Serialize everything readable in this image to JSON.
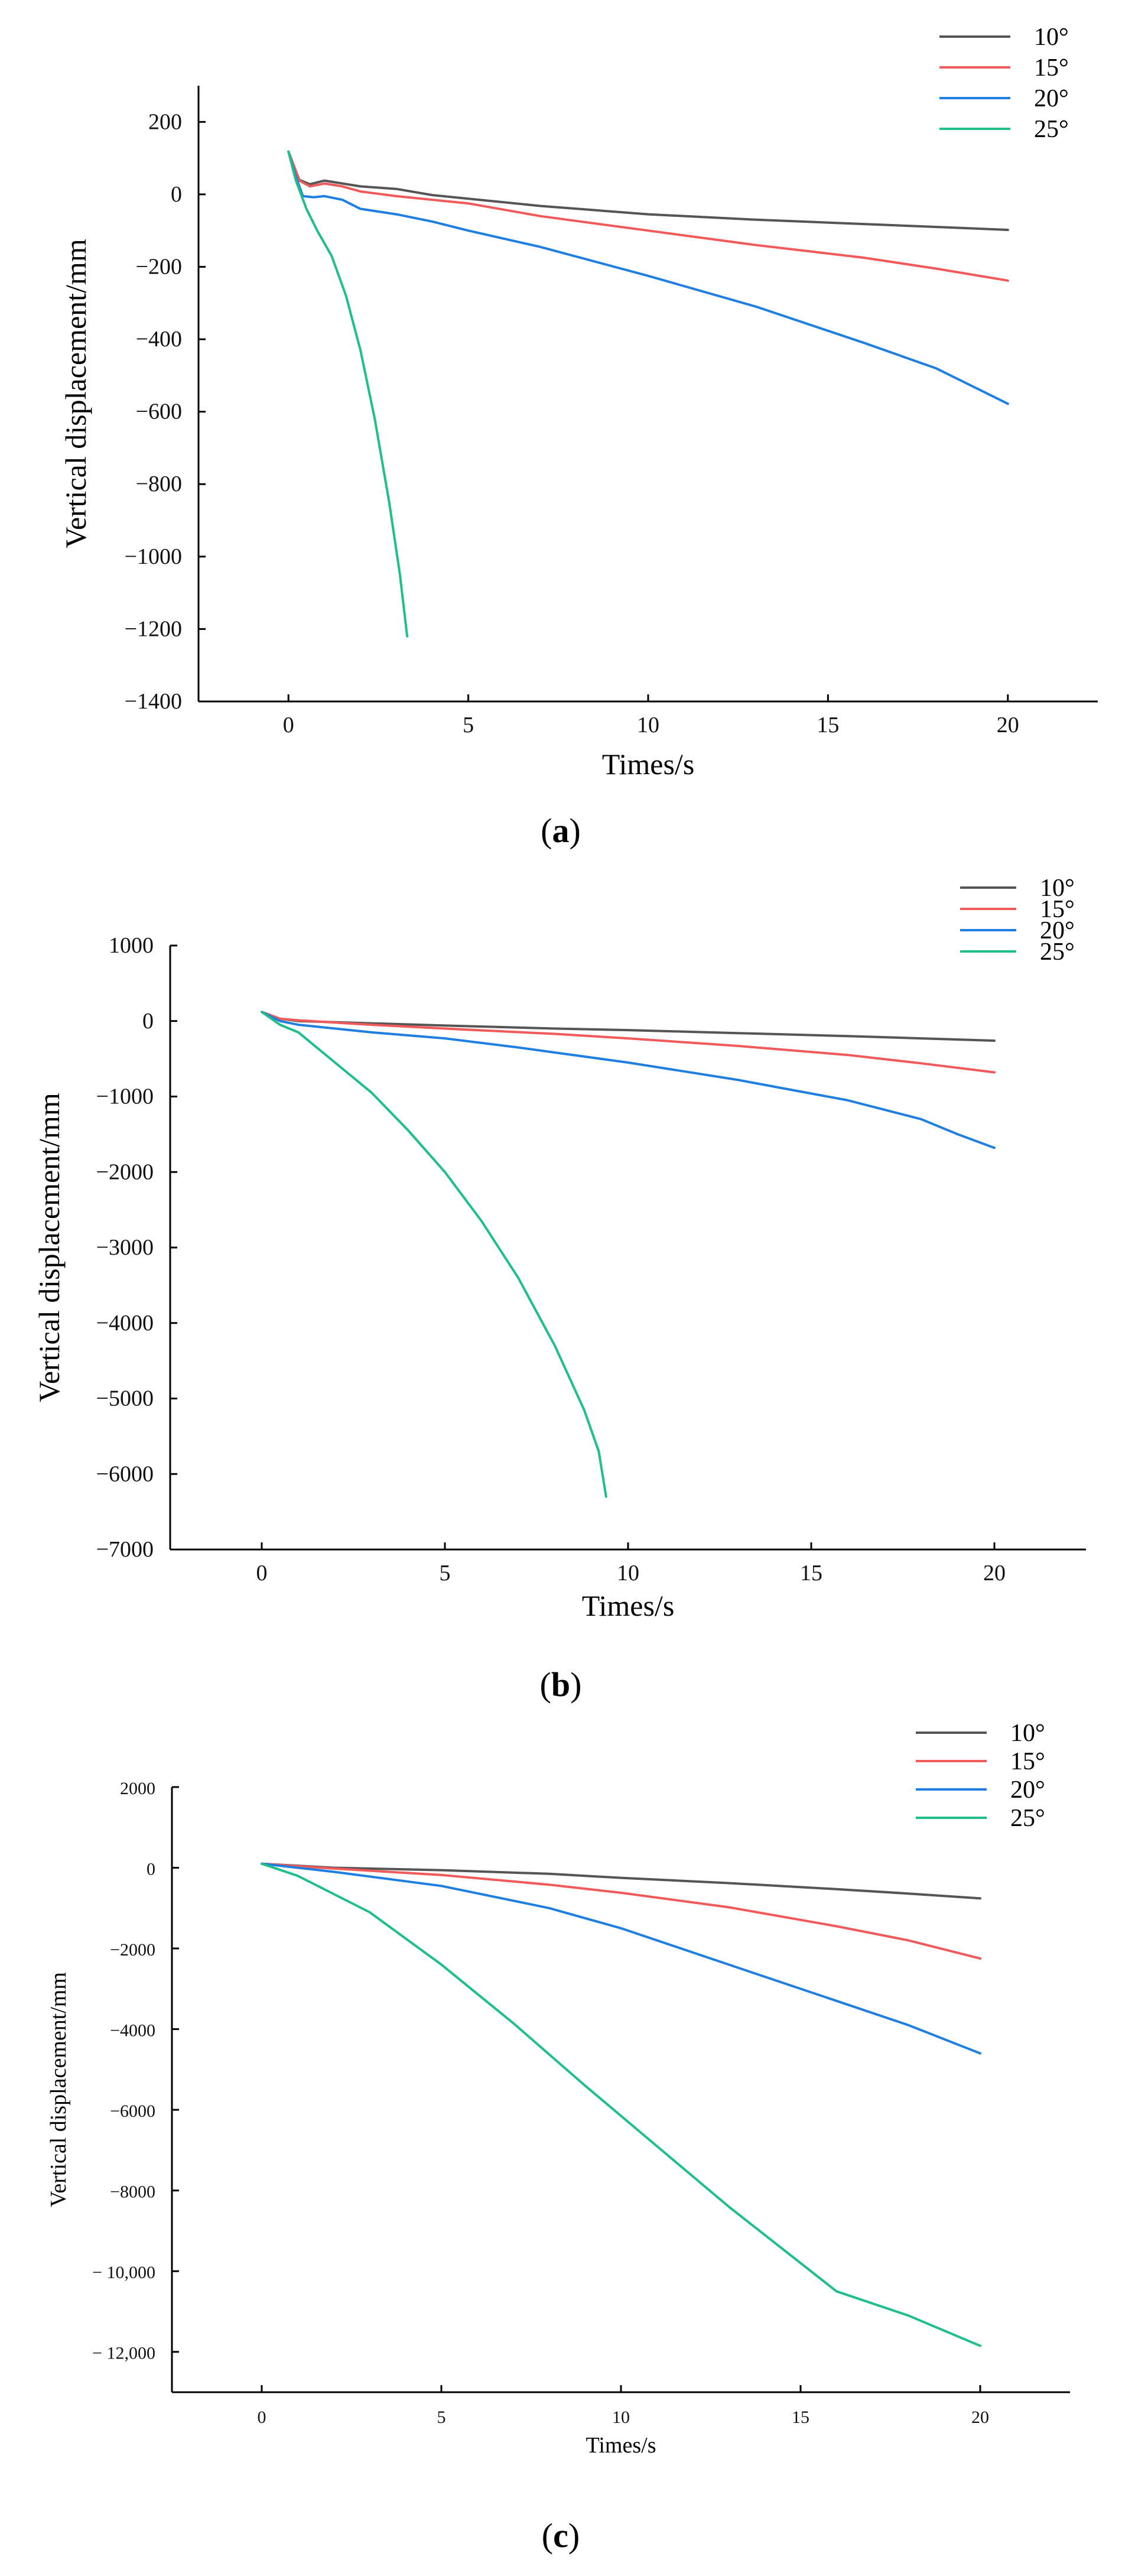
{
  "chart_data": [
    {
      "type": "line",
      "panel_label": "a",
      "xlabel": "Times/s",
      "ylabel": "Vertical displacement/mm",
      "xlim": [
        -2.5,
        22.5
      ],
      "ylim": [
        -1400,
        300
      ],
      "xticks": [
        0,
        5,
        10,
        15,
        20
      ],
      "yticks": [
        200,
        0,
        -200,
        -400,
        -600,
        -800,
        -1000,
        -1200,
        -1400
      ],
      "ytick_labels": [
        "200",
        "0",
        "−200",
        "−400",
        "−600",
        "−800",
        "−1000",
        "−1200",
        "−1400"
      ],
      "xtick_labels": [
        "0",
        "5",
        "10",
        "15",
        "20"
      ],
      "legend_position": "top-right",
      "series": [
        {
          "name": "10°",
          "color": "#555555",
          "points": [
            [
              0,
              118
            ],
            [
              0.3,
              40
            ],
            [
              0.6,
              28
            ],
            [
              1,
              38
            ],
            [
              1.5,
              30
            ],
            [
              2,
              22
            ],
            [
              3,
              15
            ],
            [
              4,
              -2
            ],
            [
              5,
              -12
            ],
            [
              7,
              -32
            ],
            [
              10,
              -55
            ],
            [
              13,
              -70
            ],
            [
              16,
              -82
            ],
            [
              18,
              -90
            ],
            [
              20,
              -98
            ]
          ]
        },
        {
          "name": "15°",
          "color": "#f05a5a",
          "points": [
            [
              0,
              118
            ],
            [
              0.3,
              38
            ],
            [
              0.6,
              22
            ],
            [
              1,
              30
            ],
            [
              1.5,
              22
            ],
            [
              2,
              8
            ],
            [
              3,
              -5
            ],
            [
              5,
              -25
            ],
            [
              7,
              -60
            ],
            [
              10,
              -100
            ],
            [
              13,
              -140
            ],
            [
              16,
              -175
            ],
            [
              18,
              -205
            ],
            [
              20,
              -238
            ]
          ]
        },
        {
          "name": "20°",
          "color": "#1f7fe0",
          "points": [
            [
              0,
              118
            ],
            [
              0.2,
              50
            ],
            [
              0.4,
              -5
            ],
            [
              0.7,
              -8
            ],
            [
              1,
              -5
            ],
            [
              1.5,
              -15
            ],
            [
              2,
              -40
            ],
            [
              3,
              -55
            ],
            [
              4,
              -75
            ],
            [
              5,
              -100
            ],
            [
              7,
              -145
            ],
            [
              10,
              -225
            ],
            [
              13,
              -310
            ],
            [
              16,
              -410
            ],
            [
              18,
              -480
            ],
            [
              20,
              -578
            ]
          ]
        },
        {
          "name": "25°",
          "color": "#1fbf88",
          "points": [
            [
              0,
              118
            ],
            [
              0.2,
              40
            ],
            [
              0.5,
              -40
            ],
            [
              0.8,
              -100
            ],
            [
              1.2,
              -170
            ],
            [
              1.6,
              -280
            ],
            [
              2,
              -430
            ],
            [
              2.4,
              -620
            ],
            [
              2.8,
              -850
            ],
            [
              3.1,
              -1050
            ],
            [
              3.3,
              -1220
            ]
          ]
        }
      ]
    },
    {
      "type": "line",
      "panel_label": "b",
      "xlabel": "Times/s",
      "ylabel": "Vertical displacement/mm",
      "xlim": [
        -2.5,
        22.5
      ],
      "ylim": [
        -7000,
        1000
      ],
      "xticks": [
        0,
        5,
        10,
        15,
        20
      ],
      "yticks": [
        1000,
        0,
        -1000,
        -2000,
        -3000,
        -4000,
        -5000,
        -6000,
        -7000
      ],
      "ytick_labels": [
        "1000",
        "0",
        "−1000",
        "−2000",
        "−3000",
        "−4000",
        "−5000",
        "−6000",
        "−7000"
      ],
      "xtick_labels": [
        "0",
        "5",
        "10",
        "15",
        "20"
      ],
      "legend_position": "top-right",
      "series": [
        {
          "name": "10°",
          "color": "#555555",
          "points": [
            [
              0,
              120
            ],
            [
              0.5,
              30
            ],
            [
              1,
              0
            ],
            [
              3,
              -30
            ],
            [
              5,
              -60
            ],
            [
              8,
              -100
            ],
            [
              10,
              -120
            ],
            [
              13,
              -160
            ],
            [
              16,
              -200
            ],
            [
              18,
              -230
            ],
            [
              20,
              -260
            ]
          ]
        },
        {
          "name": "15°",
          "color": "#f05a5a",
          "points": [
            [
              0,
              120
            ],
            [
              0.5,
              30
            ],
            [
              1,
              10
            ],
            [
              3,
              -50
            ],
            [
              5,
              -100
            ],
            [
              8,
              -170
            ],
            [
              10,
              -230
            ],
            [
              13,
              -330
            ],
            [
              16,
              -450
            ],
            [
              18,
              -560
            ],
            [
              20,
              -680
            ]
          ]
        },
        {
          "name": "20°",
          "color": "#1f7fe0",
          "points": [
            [
              0,
              120
            ],
            [
              0.5,
              0
            ],
            [
              1,
              -50
            ],
            [
              3,
              -150
            ],
            [
              5,
              -230
            ],
            [
              7,
              -350
            ],
            [
              10,
              -550
            ],
            [
              13,
              -780
            ],
            [
              16,
              -1050
            ],
            [
              18,
              -1300
            ],
            [
              19,
              -1500
            ],
            [
              20,
              -1680
            ]
          ]
        },
        {
          "name": "25°",
          "color": "#1fbf88",
          "points": [
            [
              0,
              120
            ],
            [
              0.5,
              -50
            ],
            [
              1,
              -150
            ],
            [
              2,
              -550
            ],
            [
              3,
              -950
            ],
            [
              4,
              -1450
            ],
            [
              5,
              -2000
            ],
            [
              6,
              -2650
            ],
            [
              7,
              -3400
            ],
            [
              8,
              -4300
            ],
            [
              8.8,
              -5150
            ],
            [
              9.2,
              -5700
            ],
            [
              9.4,
              -6300
            ]
          ]
        }
      ]
    },
    {
      "type": "line",
      "panel_label": "c",
      "xlabel": "Times/s",
      "ylabel": "Vertical displacement/mm",
      "xlim": [
        -2.5,
        22.5
      ],
      "ylim": [
        -13000,
        2000
      ],
      "xticks": [
        0,
        5,
        10,
        15,
        20
      ],
      "yticks": [
        2000,
        0,
        -2000,
        -4000,
        -6000,
        -8000,
        -10000,
        -12000
      ],
      "ytick_labels": [
        "2000",
        "0",
        "−2000",
        "−4000",
        "−6000",
        "−8000",
        "− 10,000",
        "− 12,000"
      ],
      "xtick_labels": [
        "0",
        "5",
        "10",
        "15",
        "20"
      ],
      "legend_position": "top-right",
      "series": [
        {
          "name": "10°",
          "color": "#555555",
          "points": [
            [
              0,
              100
            ],
            [
              2,
              0
            ],
            [
              5,
              -60
            ],
            [
              8,
              -150
            ],
            [
              10,
              -250
            ],
            [
              13,
              -380
            ],
            [
              16,
              -530
            ],
            [
              18,
              -640
            ],
            [
              20,
              -760
            ]
          ]
        },
        {
          "name": "15°",
          "color": "#f05a5a",
          "points": [
            [
              0,
              100
            ],
            [
              2,
              -20
            ],
            [
              5,
              -180
            ],
            [
              8,
              -420
            ],
            [
              10,
              -620
            ],
            [
              13,
              -980
            ],
            [
              16,
              -1450
            ],
            [
              18,
              -1800
            ],
            [
              20,
              -2250
            ]
          ]
        },
        {
          "name": "20°",
          "color": "#1f7fe0",
          "points": [
            [
              0,
              100
            ],
            [
              2,
              -100
            ],
            [
              5,
              -450
            ],
            [
              8,
              -1000
            ],
            [
              10,
              -1500
            ],
            [
              13,
              -2400
            ],
            [
              16,
              -3300
            ],
            [
              18,
              -3900
            ],
            [
              20,
              -4600
            ]
          ]
        },
        {
          "name": "25°",
          "color": "#1fbf88",
          "points": [
            [
              0,
              100
            ],
            [
              1,
              -200
            ],
            [
              3,
              -1100
            ],
            [
              5,
              -2400
            ],
            [
              7,
              -3850
            ],
            [
              9,
              -5400
            ],
            [
              11,
              -6900
            ],
            [
              13,
              -8400
            ],
            [
              15,
              -9800
            ],
            [
              16,
              -10500
            ],
            [
              18,
              -11100
            ],
            [
              20,
              -11850
            ]
          ]
        }
      ]
    }
  ]
}
